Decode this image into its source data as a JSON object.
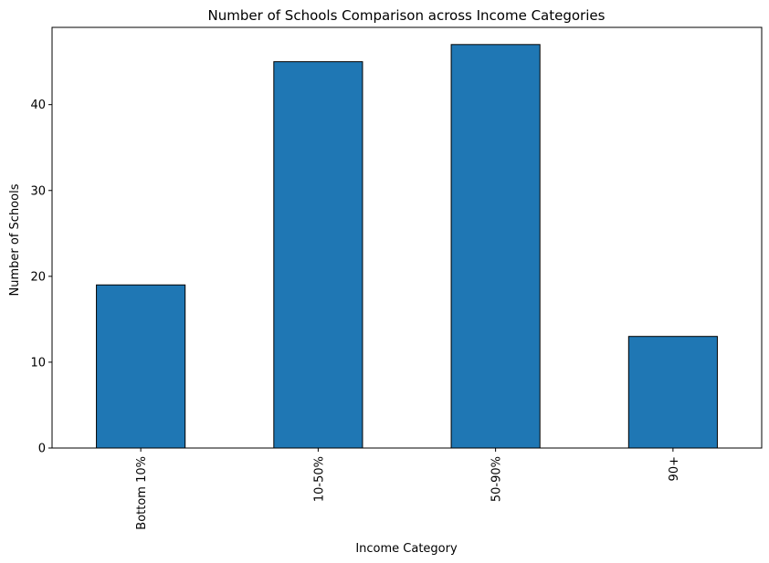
{
  "chart_data": {
    "type": "bar",
    "title": "Number of Schools Comparison across Income Categories",
    "xlabel": "Income Category",
    "ylabel": "Number of Schools",
    "categories": [
      "Bottom 10%",
      "10-50%",
      "50-90%",
      "90+"
    ],
    "values": [
      19,
      45,
      47,
      13
    ],
    "ylim": [
      0,
      49
    ],
    "yticks": [
      0,
      10,
      20,
      30,
      40
    ],
    "grid": false,
    "bar_color": "#1f77b4",
    "edge_color": "#000000"
  }
}
